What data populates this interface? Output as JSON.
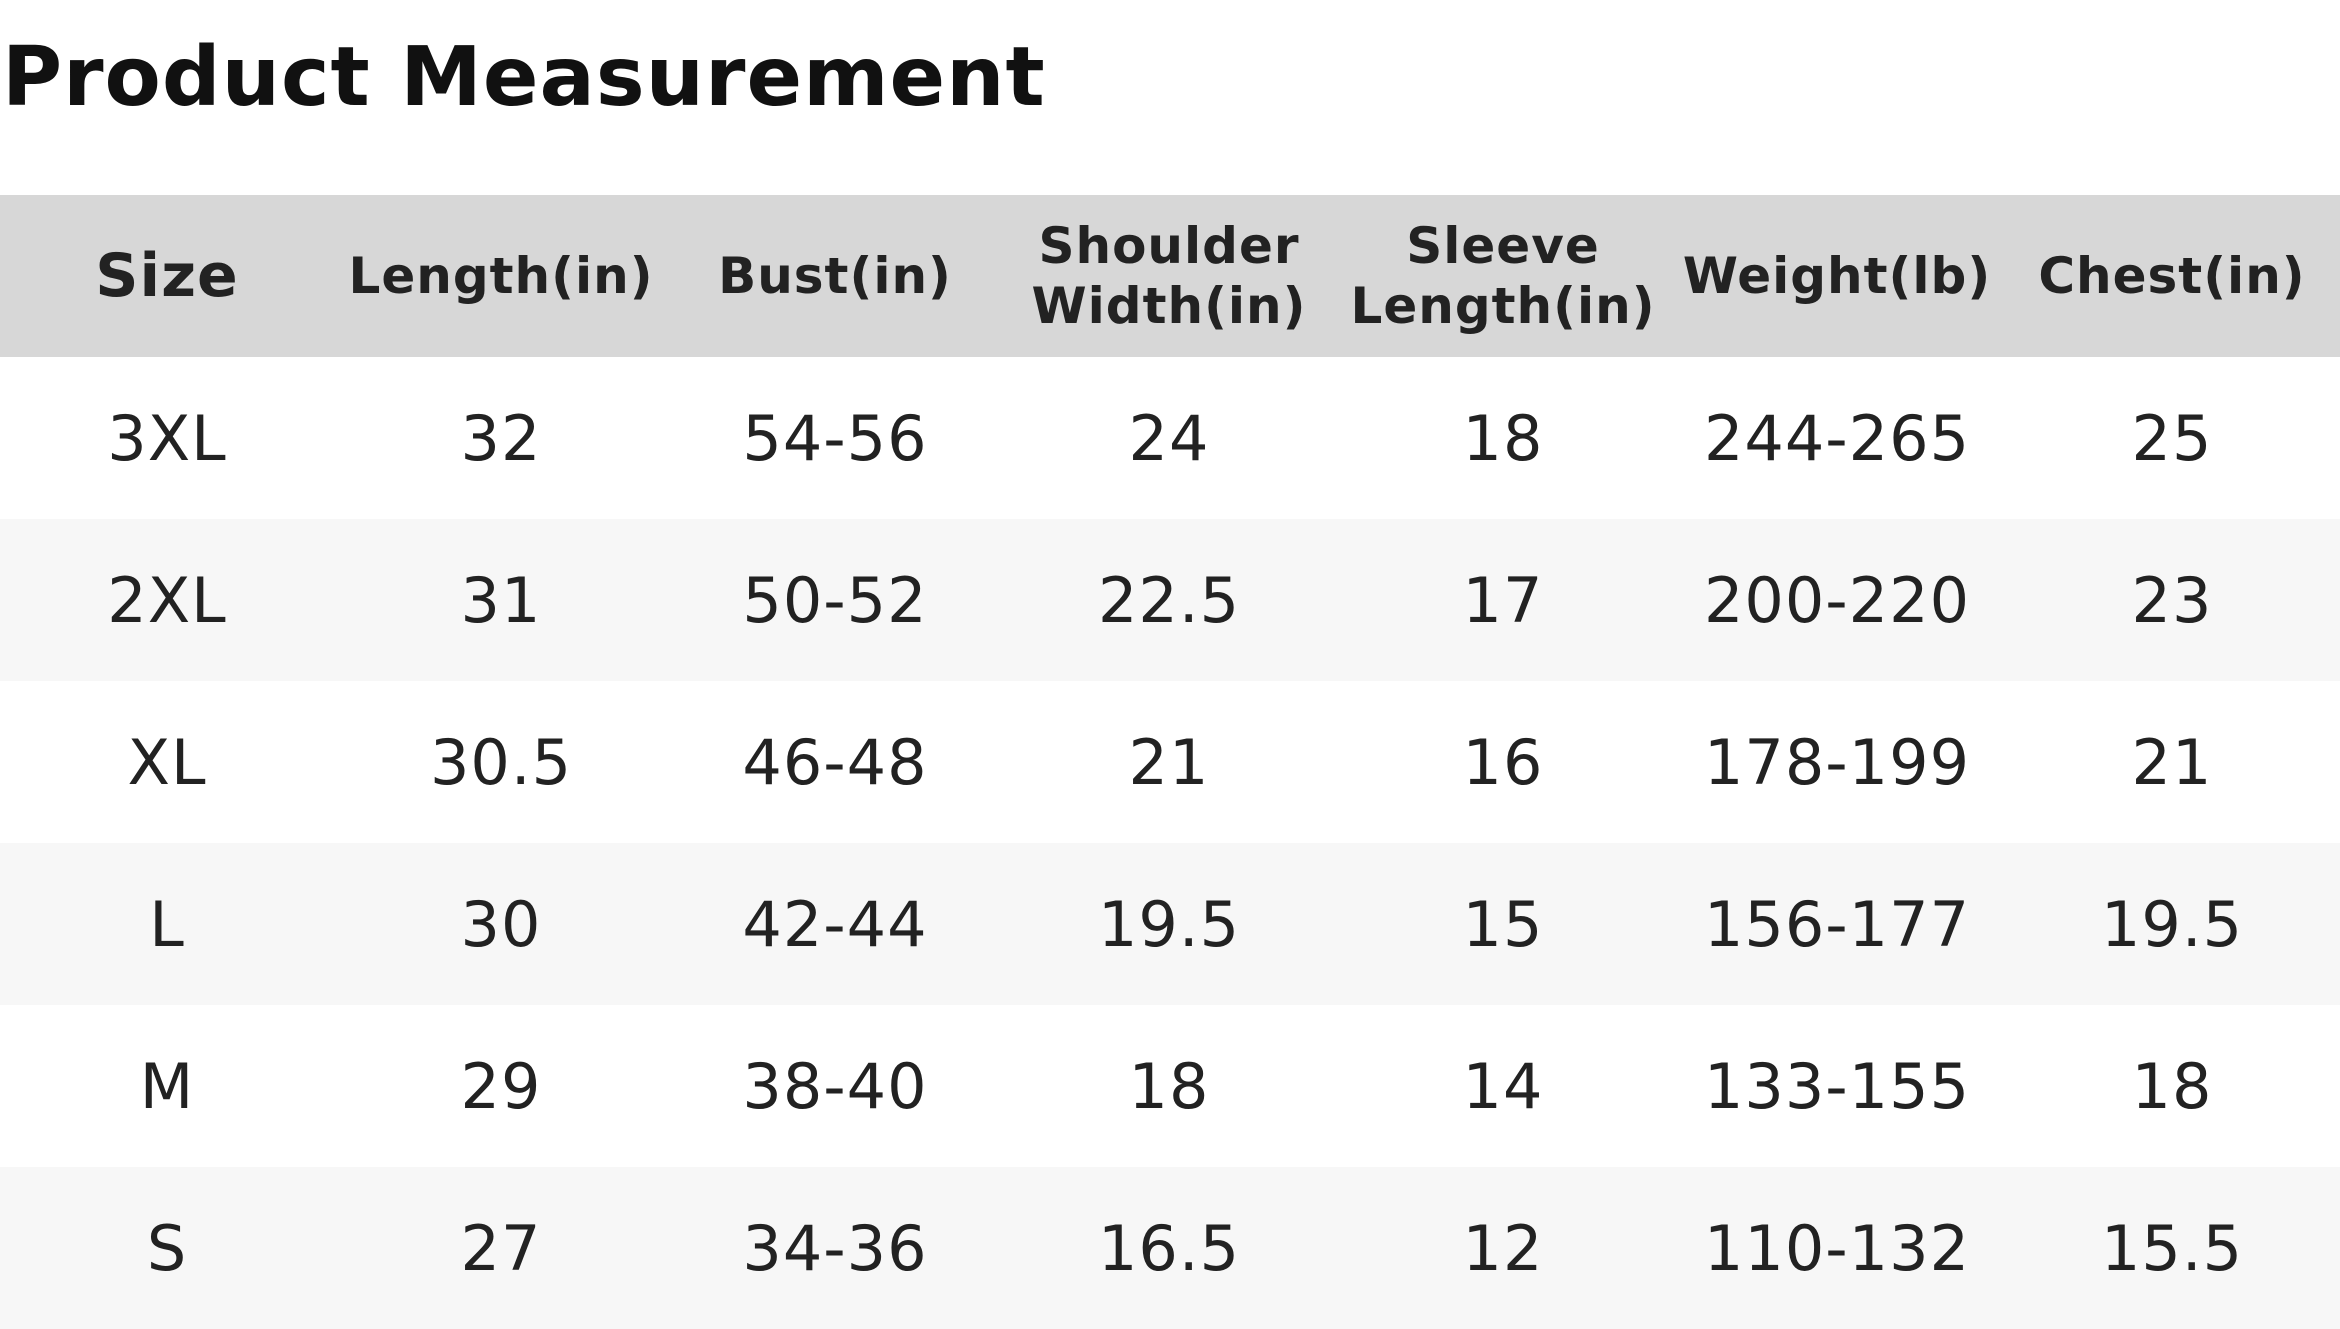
{
  "title": "Product Measurement",
  "table": {
    "headers": [
      {
        "line1": "Size",
        "line2": ""
      },
      {
        "line1": "Length(in)",
        "line2": ""
      },
      {
        "line1": "Bust(in)",
        "line2": ""
      },
      {
        "line1": "Shoulder",
        "line2": "Width(in)"
      },
      {
        "line1": "Sleeve",
        "line2": "Length(in)"
      },
      {
        "line1": "Weight(lb)",
        "line2": ""
      },
      {
        "line1": "Chest(in)",
        "line2": ""
      }
    ],
    "rows": [
      [
        "3XL",
        "32",
        "54-56",
        "24",
        "18",
        "244-265",
        "25"
      ],
      [
        "2XL",
        "31",
        "50-52",
        "22.5",
        "17",
        "200-220",
        "23"
      ],
      [
        "XL",
        "30.5",
        "46-48",
        "21",
        "16",
        "178-199",
        "21"
      ],
      [
        "L",
        "30",
        "42-44",
        "19.5",
        "15",
        "156-177",
        "19.5"
      ],
      [
        "M",
        "29",
        "38-40",
        "18",
        "14",
        "133-155",
        "18"
      ],
      [
        "S",
        "27",
        "34-36",
        "16.5",
        "12",
        "110-132",
        "15.5"
      ]
    ]
  },
  "colors": {
    "header_background": "#d7d7d7",
    "row_alt_background": "#f7f7f7",
    "text": "#222222"
  }
}
